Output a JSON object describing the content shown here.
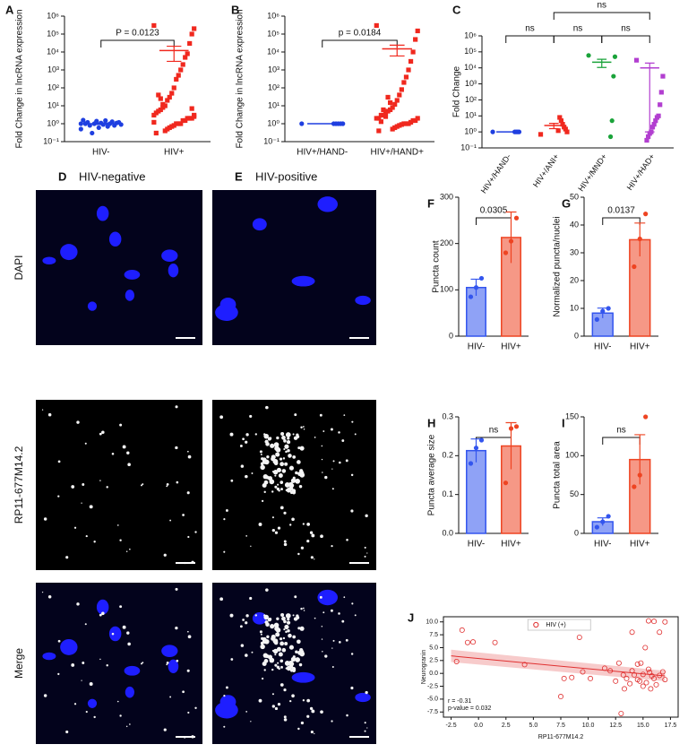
{
  "images": {
    "columns": [
      {
        "panel": "D",
        "title": "HIV-negative"
      },
      {
        "panel": "E",
        "title": "HIV-positive"
      }
    ],
    "rows": [
      "DAPI",
      "RP11-677M14.2",
      "Merge"
    ]
  },
  "chart_data": [
    {
      "panel": "A",
      "type": "dot",
      "ylabel": "Fold Change in lncRNA expression",
      "log": true,
      "ylim": [
        0.1,
        1000000
      ],
      "yticks": [
        {
          "value": 0.1,
          "label": "10⁻¹"
        },
        {
          "value": 1,
          "label": "10⁰"
        },
        {
          "value": 10,
          "label": "10¹"
        },
        {
          "value": 100,
          "label": "10²"
        },
        {
          "value": 1000,
          "label": "10³"
        },
        {
          "value": 10000,
          "label": "10⁴"
        },
        {
          "value": 100000,
          "label": "10⁵"
        },
        {
          "value": 1000000,
          "label": "10⁶"
        }
      ],
      "categories": [
        "HIV-",
        "HIV+"
      ],
      "colors": [
        "#1f3fe0",
        "#f0281e"
      ],
      "markers": [
        "circle",
        "square"
      ],
      "values": [
        [
          1,
          0.9,
          1.2,
          1.1,
          0.8,
          1.3,
          1,
          0.7,
          1.5,
          0.9,
          1.1,
          0.6,
          1.4,
          1,
          0.3,
          0.8,
          1.2,
          1,
          1.6,
          0.5
        ],
        [
          300000,
          200000,
          100000,
          30000,
          8000,
          5000,
          2000,
          1000,
          500,
          300,
          100,
          50,
          30,
          20,
          10,
          8,
          6,
          5,
          4,
          3,
          3,
          2,
          2,
          2,
          1.5,
          1.5,
          1,
          1,
          1,
          0.8,
          0.7,
          0.6,
          0.5,
          0.4,
          12,
          25,
          40,
          0.3,
          1.2,
          2.5,
          7
        ]
      ],
      "means": [
        1,
        12000
      ],
      "sems": [
        0.1,
        9000
      ],
      "brackets": [
        {
          "label": "P = 0.0123",
          "from": "HIV-",
          "to": "HIV+"
        }
      ]
    },
    {
      "panel": "B",
      "type": "dot",
      "ylabel": "Fold Change in lncRNA expression",
      "log": true,
      "ylim": [
        0.1,
        1000000
      ],
      "yticks": [
        {
          "value": 0.1,
          "label": "10⁻¹"
        },
        {
          "value": 1,
          "label": "10⁰"
        },
        {
          "value": 10,
          "label": "10¹"
        },
        {
          "value": 100,
          "label": "10²"
        },
        {
          "value": 1000,
          "label": "10³"
        },
        {
          "value": 10000,
          "label": "10⁴"
        },
        {
          "value": 100000,
          "label": "10⁵"
        },
        {
          "value": 1000000,
          "label": "10⁶"
        }
      ],
      "categories": [
        "HIV+/HAND-",
        "HIV+/HAND+"
      ],
      "colors": [
        "#1f3fe0",
        "#f0281e"
      ],
      "markers": [
        "circle",
        "square"
      ],
      "values": [
        [
          1,
          1,
          1,
          1,
          1,
          1
        ],
        [
          300000,
          150000,
          50000,
          10000,
          3000,
          1000,
          400,
          200,
          80,
          40,
          20,
          12,
          8,
          6,
          5,
          4,
          3,
          3,
          2,
          2,
          2,
          1.5,
          1.5,
          1.2,
          1,
          1,
          1,
          0.9,
          0.8,
          0.7,
          0.6,
          0.5,
          15,
          30,
          2.5,
          6,
          1.3,
          0.4
        ]
      ],
      "means": [
        1,
        15000
      ],
      "sems": [
        0,
        9000
      ],
      "brackets": [
        {
          "label": "p = 0.0184",
          "from": "HIV+/HAND-",
          "to": "HIV+/HAND+"
        }
      ]
    },
    {
      "panel": "C",
      "type": "dot",
      "ylabel": "Fold Change",
      "log": true,
      "rotate_labels": true,
      "ylim": [
        0.1,
        1000000
      ],
      "yticks": [
        {
          "value": 0.1,
          "label": "10⁻¹"
        },
        {
          "value": 1,
          "label": "10⁰"
        },
        {
          "value": 10,
          "label": "10¹"
        },
        {
          "value": 100,
          "label": "10²"
        },
        {
          "value": 1000,
          "label": "10³"
        },
        {
          "value": 10000,
          "label": "10⁴"
        },
        {
          "value": 100000,
          "label": "10⁵"
        },
        {
          "value": 1000000,
          "label": "10⁶"
        }
      ],
      "categories": [
        "HIV+/HAND-",
        "HIV+/ANI+",
        "HIV+/MND+",
        "HIV+/HAD+"
      ],
      "colors": [
        "#1f3fe0",
        "#f0281e",
        "#1aa33a",
        "#b23fd0"
      ],
      "markers": [
        "circle",
        "square",
        "circle",
        "square"
      ],
      "values": [
        [
          1,
          1,
          1,
          1,
          1
        ],
        [
          0.7,
          1,
          1.5,
          2,
          3,
          5,
          8,
          1.2
        ],
        [
          60000,
          50000,
          3000,
          5,
          0.5
        ],
        [
          30000,
          3000,
          300,
          50,
          10,
          8,
          5,
          3,
          2,
          1,
          0.8,
          0.5,
          0.3
        ]
      ],
      "means": [
        1,
        2.5,
        22600,
        10000
      ],
      "sems": [
        0,
        0.9,
        12000,
        9999
      ],
      "brackets": [
        {
          "label": "ns",
          "from": "HIV+/HAND-",
          "to": "HIV+/ANI+"
        },
        {
          "label": "ns",
          "from": "HIV+/ANI+",
          "to": "HIV+/MND+"
        },
        {
          "label": "ns",
          "from": "HIV+/MND+",
          "to": "HIV+/HAD+"
        },
        {
          "label": "ns",
          "from": "HIV+/ANI+",
          "to": "HIV+/HAD+"
        }
      ]
    },
    {
      "panel": "F",
      "type": "bar",
      "ylabel": "Puncta count",
      "ylim": [
        0,
        300
      ],
      "yticks": [
        0,
        100,
        200,
        300
      ],
      "categories": [
        "HIV-",
        "HIV+"
      ],
      "colors": [
        "#3355ee",
        "#ee4422"
      ],
      "values": [
        105,
        213
      ],
      "errors": [
        18,
        55
      ],
      "points": [
        [
          85,
          105,
          125
        ],
        [
          180,
          205,
          255
        ]
      ],
      "brackets": [
        {
          "label": "0.0305",
          "from": "HIV-",
          "to": "HIV+"
        }
      ]
    },
    {
      "panel": "G",
      "type": "bar",
      "ylabel": "Normalized puncta/nuclei",
      "ylim": [
        0,
        50
      ],
      "yticks": [
        0,
        10,
        20,
        30,
        40,
        50
      ],
      "categories": [
        "HIV-",
        "HIV+"
      ],
      "colors": [
        "#3355ee",
        "#ee4422"
      ],
      "values": [
        8.3,
        34.7
      ],
      "errors": [
        1.8,
        6
      ],
      "points": [
        [
          6,
          9,
          10
        ],
        [
          25,
          35,
          44
        ]
      ],
      "brackets": [
        {
          "label": "0.0137",
          "from": "HIV-",
          "to": "HIV+"
        }
      ]
    },
    {
      "panel": "H",
      "type": "bar",
      "ylabel": "Puncta average size",
      "ylim": [
        0,
        0.3
      ],
      "yticks": [
        {
          "value": 0,
          "label": "0.0"
        },
        0.1,
        0.2,
        0.3
      ],
      "categories": [
        "HIV-",
        "HIV+"
      ],
      "colors": [
        "#3355ee",
        "#ee4422"
      ],
      "values": [
        0.213,
        0.225
      ],
      "errors": [
        0.03,
        0.06
      ],
      "points": [
        [
          0.18,
          0.22,
          0.24
        ],
        [
          0.13,
          0.27,
          0.275
        ]
      ],
      "brackets": [
        {
          "label": "ns",
          "from": "HIV-",
          "to": "HIV+"
        }
      ]
    },
    {
      "panel": "I",
      "type": "bar",
      "ylabel": "Puncta total area",
      "ylim": [
        0,
        150
      ],
      "yticks": [
        0,
        50,
        100,
        150
      ],
      "categories": [
        "HIV-",
        "HIV+"
      ],
      "colors": [
        "#3355ee",
        "#ee4422"
      ],
      "values": [
        15,
        95
      ],
      "errors": [
        5,
        32
      ],
      "points": [
        [
          8,
          15,
          22
        ],
        [
          60,
          75,
          150
        ]
      ],
      "brackets": [
        {
          "label": "ns",
          "from": "HIV-",
          "to": "HIV+"
        }
      ]
    },
    {
      "panel": "J",
      "type": "scatter",
      "xlabel": "RP11-677M14.2",
      "ylabel": "Neurogranin",
      "xlim": [
        -3.2,
        18.2
      ],
      "ylim": [
        -8.5,
        11
      ],
      "xticks": [
        -2.5,
        {
          "value": 0,
          "label": "0.0"
        },
        2.5,
        {
          "value": 5,
          "label": "5.0"
        },
        7.5,
        {
          "value": 10,
          "label": "10.0"
        },
        12.5,
        {
          "value": 15,
          "label": "15.0"
        },
        17.5
      ],
      "yticks": [
        -7.5,
        {
          "value": -5,
          "label": "-5.0"
        },
        -2.5,
        {
          "value": 0,
          "label": "0.0"
        },
        2.5,
        {
          "value": 5,
          "label": "5.0"
        },
        7.5,
        {
          "value": 10,
          "label": "10.0"
        }
      ],
      "x": [
        -2,
        -1.5,
        -1,
        -0.5,
        1.5,
        4.2,
        9.2,
        7.5,
        7.8,
        8.5,
        9.5,
        10.2,
        11.5,
        12,
        12.5,
        12.8,
        13,
        13.3,
        13.5,
        13.8,
        14,
        14,
        14.2,
        14.5,
        14.5,
        14.8,
        15,
        15,
        15.2,
        15.3,
        15.5,
        15.5,
        15.7,
        15.8,
        16,
        16,
        16.2,
        16.5,
        16.5,
        16.8,
        17,
        17,
        13.2,
        15.6,
        14.7
      ],
      "series": [
        {
          "name": "HIV (+)",
          "color": "#e03030",
          "values": [
            2.3,
            8.4,
            6,
            6.1,
            6,
            1.7,
            7,
            -4.5,
            -1,
            -0.8,
            0.3,
            -1,
            1,
            0.5,
            -1.5,
            2,
            -7.8,
            -3,
            -1,
            -2,
            8,
            0.5,
            -0.3,
            -1.2,
            1.8,
            2,
            -2.5,
            -0.2,
            5,
            -1.8,
            10.2,
            0.8,
            -3,
            -0.5,
            10.1,
            -1,
            -2.2,
            8,
            -0.4,
            0.3,
            10,
            -1.2,
            -0.3,
            0.2,
            -1.5
          ]
        }
      ],
      "fit": {
        "x": [
          -2.5,
          17
        ],
        "y": [
          3.4,
          -0.5
        ],
        "lower": [
          2.2,
          -1.5
        ],
        "upper": [
          4.6,
          0.5
        ]
      },
      "annotations": [
        "r = -0.31",
        "p-value = 0.032"
      ]
    }
  ]
}
